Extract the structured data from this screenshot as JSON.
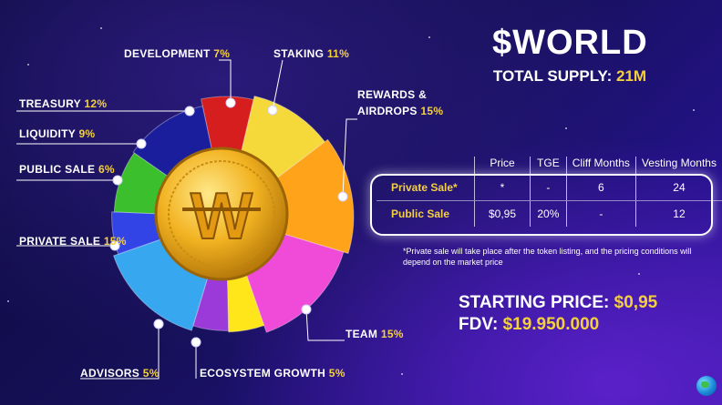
{
  "header": {
    "token": "$WORLD",
    "supply_label": "TOTAL SUPPLY:",
    "supply_value": "21M"
  },
  "chart_data": {
    "type": "pie",
    "categories": [
      "Development",
      "Staking",
      "Rewards & Airdrops",
      "Team",
      "Ecosystem Growth",
      "Advisors",
      "Private Sale",
      "Public Sale",
      "Liquidity",
      "Treasury"
    ],
    "values": [
      7,
      11,
      15,
      15,
      5,
      5,
      15,
      6,
      9,
      12
    ],
    "labels": [
      {
        "name": "DEVELOPMENT",
        "pct": "7%"
      },
      {
        "name": "STAKING",
        "pct": "11%"
      },
      {
        "name": "REWARDS &",
        "name2": "AIRDROPS",
        "pct": "15%"
      },
      {
        "name": "TEAM",
        "pct": "15%"
      },
      {
        "name": "ECOSYSTEM GROWTH",
        "pct": "5%"
      },
      {
        "name": "ADVISORS",
        "pct": "5%"
      },
      {
        "name": "PRIVATE SALE",
        "pct": "15%"
      },
      {
        "name": "PUBLIC SALE",
        "pct": "6%"
      },
      {
        "name": "LIQUIDITY",
        "pct": "9%"
      },
      {
        "name": "TREASURY",
        "pct": "12%"
      }
    ],
    "colors": [
      "#d61e1e",
      "#f5d93a",
      "#ffa41a",
      "#f04bd8",
      "#ffe61a",
      "#9b3ad8",
      "#37a8f0",
      "#3344e6",
      "#3cbf2c",
      "#1b1e9c"
    ],
    "center_icon": "gold-coin-w-icon"
  },
  "table": {
    "headers": [
      "Price",
      "TGE",
      "Cliff Months",
      "Vesting Months"
    ],
    "rows": [
      {
        "label": "Private Sale*",
        "cells": [
          "*",
          "-",
          "6",
          "24"
        ]
      },
      {
        "label": "Public Sale",
        "cells": [
          "$0,95",
          "20%",
          "-",
          "12"
        ]
      }
    ]
  },
  "note": "*Private sale will take place after the token listing, and the pricing conditions will depend on the market price",
  "price": {
    "label": "STARTING PRICE:",
    "value": "$0,95"
  },
  "fdv": {
    "label": "FDV:",
    "value": "$19.950.000"
  },
  "globe_icon": "globe-icon"
}
